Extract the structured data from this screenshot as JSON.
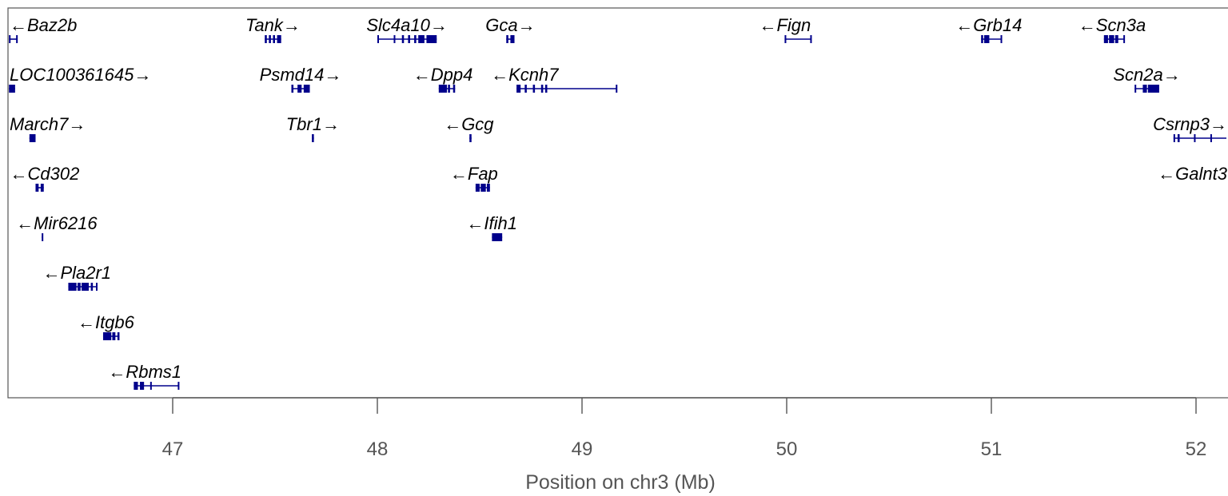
{
  "chart_data": {
    "type": "gene-track",
    "xlabel": "Position on chr3 (Mb)",
    "xlim": [
      46.2,
      52.2
    ],
    "ticks": [
      47,
      48,
      49,
      50,
      51,
      52
    ],
    "tick_labels": [
      "47",
      "48",
      "49",
      "50",
      "51",
      "52"
    ],
    "gene_color": "#00008B",
    "genes": [
      {
        "name": "Baz2b",
        "strand": "-",
        "start": 46.2,
        "end": 46.24,
        "row": 0,
        "exons": [
          [
            46.2,
            46.205
          ],
          [
            46.235,
            46.24
          ]
        ]
      },
      {
        "name": "Tank",
        "strand": "+",
        "start": 47.45,
        "end": 47.53,
        "row": 0,
        "exons": [
          [
            47.45,
            47.46
          ],
          [
            47.47,
            47.48
          ],
          [
            47.49,
            47.5
          ],
          [
            47.51,
            47.53
          ]
        ]
      },
      {
        "name": "Slc4a10",
        "strand": "+",
        "start": 48.0,
        "end": 48.29,
        "row": 0,
        "exons": [
          [
            48.0,
            48.005
          ],
          [
            48.08,
            48.085
          ],
          [
            48.12,
            48.13
          ],
          [
            48.15,
            48.16
          ],
          [
            48.18,
            48.19
          ],
          [
            48.2,
            48.23
          ],
          [
            48.24,
            48.29
          ]
        ]
      },
      {
        "name": "Gca",
        "strand": "+",
        "start": 48.63,
        "end": 48.67,
        "row": 0,
        "exons": [
          [
            48.63,
            48.64
          ],
          [
            48.65,
            48.67
          ]
        ]
      },
      {
        "name": "Fign",
        "strand": "-",
        "start": 49.99,
        "end": 50.12,
        "row": 0,
        "exons": [
          [
            49.99,
            49.995
          ],
          [
            50.115,
            50.12
          ]
        ]
      },
      {
        "name": "Grb14",
        "strand": "-",
        "start": 50.95,
        "end": 51.05,
        "row": 0,
        "exons": [
          [
            50.95,
            50.96
          ],
          [
            50.965,
            50.99
          ],
          [
            51.045,
            51.05
          ]
        ]
      },
      {
        "name": "Scn3a",
        "strand": "-",
        "start": 51.55,
        "end": 51.65,
        "row": 0,
        "exons": [
          [
            51.55,
            51.57
          ],
          [
            51.575,
            51.6
          ],
          [
            51.605,
            51.62
          ],
          [
            51.645,
            51.65
          ]
        ]
      },
      {
        "name": "LOC100361645",
        "strand": "+",
        "start": 46.2,
        "end": 46.23,
        "row": 1,
        "exons": [
          [
            46.2,
            46.23
          ]
        ]
      },
      {
        "name": "Psmd14",
        "strand": "+",
        "start": 47.58,
        "end": 47.67,
        "row": 1,
        "exons": [
          [
            47.58,
            47.59
          ],
          [
            47.61,
            47.63
          ],
          [
            47.64,
            47.67
          ]
        ]
      },
      {
        "name": "Dpp4",
        "strand": "-",
        "start": 48.3,
        "end": 48.38,
        "row": 1,
        "exons": [
          [
            48.3,
            48.34
          ],
          [
            48.345,
            48.355
          ],
          [
            48.37,
            48.38
          ]
        ]
      },
      {
        "name": "Kcnh7",
        "strand": "-",
        "start": 48.68,
        "end": 49.17,
        "row": 1,
        "exons": [
          [
            48.68,
            48.7
          ],
          [
            48.72,
            48.73
          ],
          [
            48.76,
            48.77
          ],
          [
            48.8,
            48.81
          ],
          [
            48.82,
            48.83
          ],
          [
            49.165,
            49.17
          ]
        ]
      },
      {
        "name": "Scn2a",
        "strand": "+",
        "start": 51.7,
        "end": 51.82,
        "row": 1,
        "exons": [
          [
            51.7,
            51.705
          ],
          [
            51.74,
            51.76
          ],
          [
            51.765,
            51.82
          ]
        ]
      },
      {
        "name": "March7",
        "strand": "+",
        "start": 46.3,
        "end": 46.33,
        "row": 2,
        "exons": [
          [
            46.3,
            46.33
          ]
        ]
      },
      {
        "name": "Tbr1",
        "strand": "+",
        "start": 47.68,
        "end": 47.69,
        "row": 2,
        "exons": [
          [
            47.68,
            47.69
          ]
        ]
      },
      {
        "name": "Gcg",
        "strand": "-",
        "start": 48.45,
        "end": 48.46,
        "row": 2,
        "exons": [
          [
            48.45,
            48.46
          ]
        ]
      },
      {
        "name": "Csrnp3",
        "strand": "+",
        "start": 51.89,
        "end": 52.21,
        "row": 2,
        "exons": [
          [
            51.89,
            51.895
          ],
          [
            51.91,
            51.92
          ],
          [
            51.99,
            51.995
          ],
          [
            52.07,
            52.075
          ],
          [
            52.2,
            52.21
          ]
        ]
      },
      {
        "name": "Cd302",
        "strand": "-",
        "start": 46.33,
        "end": 46.37,
        "row": 3,
        "exons": [
          [
            46.33,
            46.345
          ],
          [
            46.355,
            46.37
          ]
        ]
      },
      {
        "name": "Fap",
        "strand": "-",
        "start": 48.48,
        "end": 48.55,
        "row": 3,
        "exons": [
          [
            48.48,
            48.5
          ],
          [
            48.505,
            48.53
          ],
          [
            48.535,
            48.55
          ]
        ]
      },
      {
        "name": "Galnt3",
        "strand": "-",
        "start": 52.2,
        "end": 52.25,
        "row": 3,
        "exons": []
      },
      {
        "name": "Mir6216",
        "strand": "-",
        "start": 46.36,
        "end": 46.365,
        "row": 4,
        "exons": [
          [
            46.36,
            46.365
          ]
        ]
      },
      {
        "name": "Ifih1",
        "strand": "-",
        "start": 48.56,
        "end": 48.61,
        "row": 4,
        "exons": [
          [
            48.56,
            48.61
          ]
        ]
      },
      {
        "name": "Pla2r1",
        "strand": "-",
        "start": 46.49,
        "end": 46.63,
        "row": 5,
        "exons": [
          [
            46.49,
            46.53
          ],
          [
            46.535,
            46.55
          ],
          [
            46.555,
            46.59
          ],
          [
            46.6,
            46.61
          ],
          [
            46.625,
            46.63
          ]
        ]
      },
      {
        "name": "Itgb6",
        "strand": "-",
        "start": 46.66,
        "end": 46.74,
        "row": 6,
        "exons": [
          [
            46.66,
            46.7
          ],
          [
            46.705,
            46.72
          ],
          [
            46.73,
            46.74
          ]
        ]
      },
      {
        "name": "Rbms1",
        "strand": "-",
        "start": 46.81,
        "end": 47.03,
        "row": 7,
        "exons": [
          [
            46.81,
            46.83
          ],
          [
            46.84,
            46.86
          ],
          [
            46.89,
            46.895
          ],
          [
            47.025,
            47.03
          ]
        ]
      }
    ]
  }
}
